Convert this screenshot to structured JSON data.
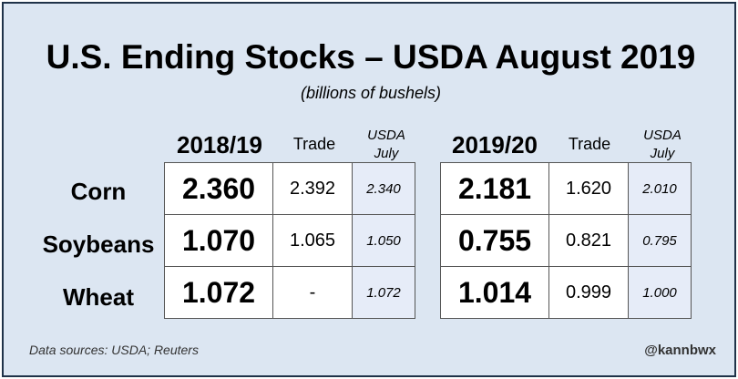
{
  "title": "U.S. Ending Stocks – USDA August 2019",
  "subtitle": "(billions of bushels)",
  "columns": {
    "year1": "2018/19",
    "year2": "2019/20",
    "trade": "Trade",
    "usda_line1": "USDA",
    "usda_line2": "July"
  },
  "rows": [
    {
      "label": "Corn",
      "y1": "2.360",
      "y1_trade": "2.392",
      "y1_usda": "2.340",
      "y2": "2.181",
      "y2_trade": "1.620",
      "y2_usda": "2.010"
    },
    {
      "label": "Soybeans",
      "y1": "1.070",
      "y1_trade": "1.065",
      "y1_usda": "1.050",
      "y2": "0.755",
      "y2_trade": "0.821",
      "y2_usda": "0.795"
    },
    {
      "label": "Wheat",
      "y1": "1.072",
      "y1_trade": "-",
      "y1_usda": "1.072",
      "y2": "1.014",
      "y2_trade": "0.999",
      "y2_usda": "1.000"
    }
  ],
  "footer": {
    "source": "Data sources: USDA; Reuters",
    "handle": "@kannbwx"
  }
}
